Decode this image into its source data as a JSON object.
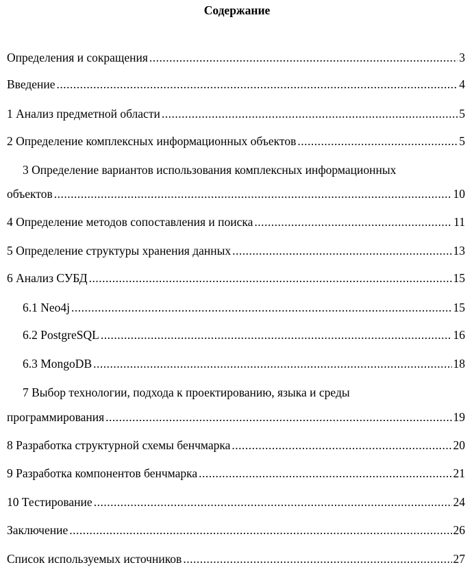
{
  "title": "Содержание",
  "entries": [
    {
      "label": "Определения и сокращения",
      "page": "3"
    },
    {
      "label": "Введение",
      "page": "4"
    },
    {
      "label": "1 Анализ предметной области",
      "page": "5"
    },
    {
      "label": "2 Определение комплексных информационных объектов",
      "page": "5"
    },
    {
      "label_line1": "3 Определение вариантов использования комплексных информационных",
      "label": "объектов",
      "page": "10"
    },
    {
      "label": "4 Определение методов сопоставления и поиска",
      "page": "11"
    },
    {
      "label": "5 Определение структуры хранения данных",
      "page": "13"
    },
    {
      "label": "6 Анализ СУБД",
      "page": "15"
    },
    {
      "label": "6.1 Neo4j",
      "page": "15"
    },
    {
      "label": "6.2 PostgreSQL",
      "page": "16"
    },
    {
      "label": "6.3 MongoDB",
      "page": "18"
    },
    {
      "label_line1": "7 Выбор технологии, подхода к проектированию, языка и среды",
      "label": "программирования",
      "page": "19"
    },
    {
      "label": "8 Разработка структурной схемы бенчмарка",
      "page": "20"
    },
    {
      "label": "9 Разработка компонентов бенчмарка",
      "page": "21"
    },
    {
      "label": "10 Тестирование",
      "page": "24"
    },
    {
      "label": "Заключение",
      "page": "26"
    },
    {
      "label": "Список используемых источников",
      "page": "27"
    }
  ]
}
